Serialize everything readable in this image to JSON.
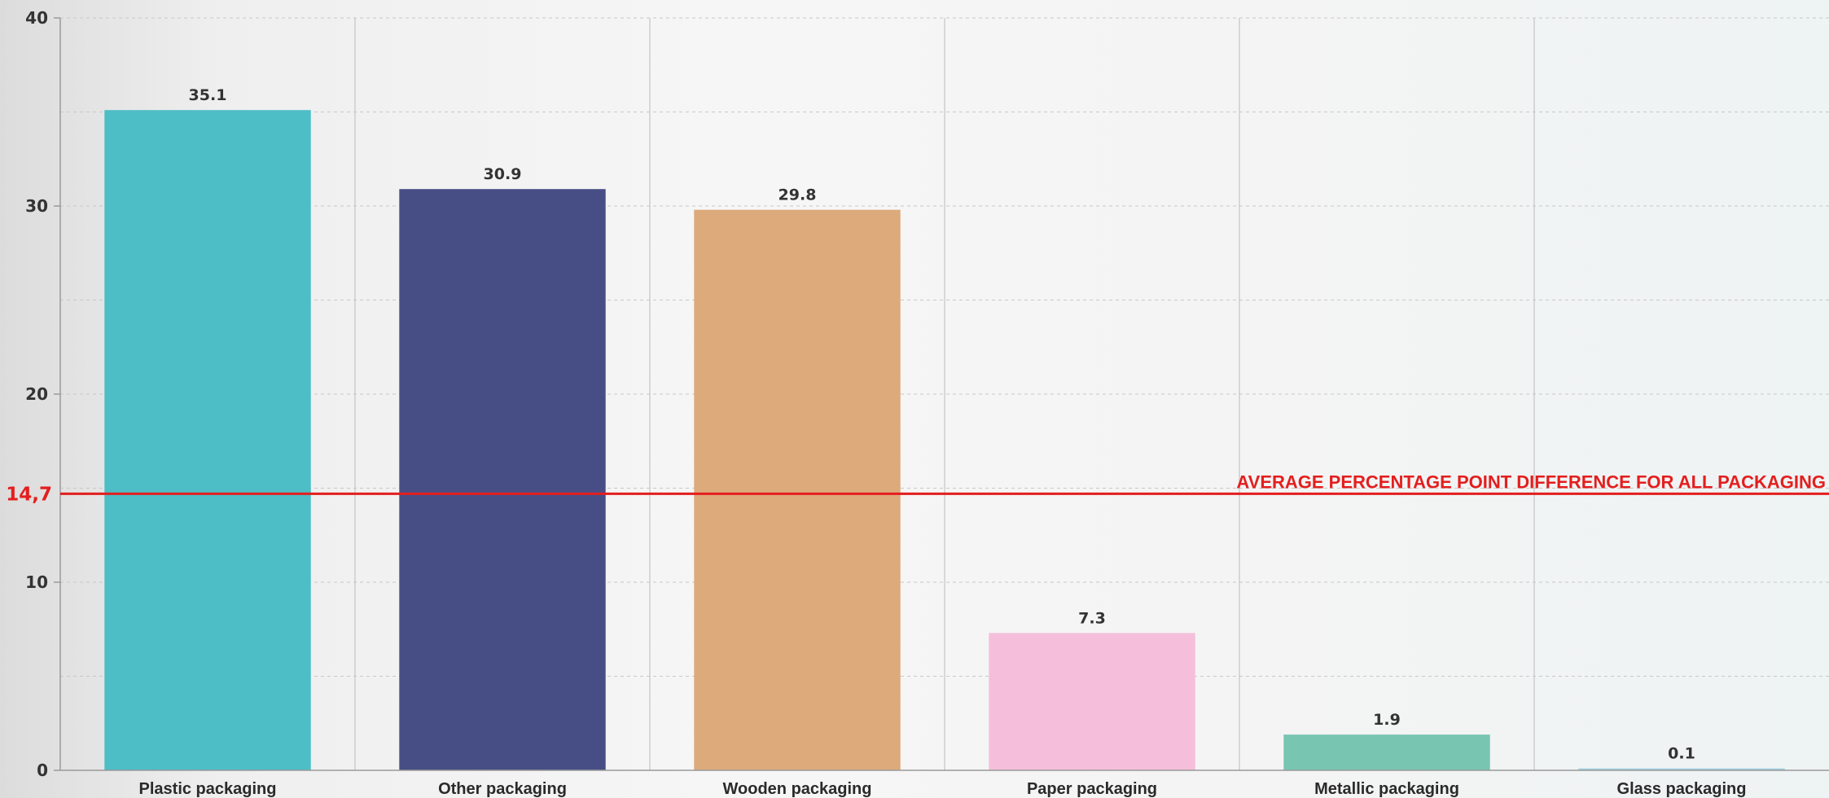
{
  "chart_data": {
    "type": "bar",
    "categories": [
      "Plastic packaging",
      "Other packaging",
      "Wooden packaging",
      "Paper packaging",
      "Metallic packaging",
      "Glass packaging"
    ],
    "values": [
      35.1,
      30.9,
      29.8,
      7.3,
      1.9,
      0.1
    ],
    "value_labels": [
      "35.1",
      "30.9",
      "29.8",
      "7.3",
      "1.9",
      "0.1"
    ],
    "bar_colors": [
      "#4dbdc6",
      "#474e85",
      "#dcaa7b",
      "#f5bfdb",
      "#78c5b2",
      "#9fcfe3"
    ],
    "ylim": [
      0,
      40
    ],
    "yticks": [
      0,
      10,
      20,
      30,
      40
    ],
    "ytick_labels": [
      "0",
      "10",
      "20",
      "30",
      "40"
    ],
    "grid": true,
    "reference_line": {
      "value": 14.7,
      "value_label": "14,7",
      "label": "AVERAGE PERCENTAGE POINT DIFFERENCE FOR ALL PACKAGING",
      "color": "#e41e1e"
    }
  }
}
